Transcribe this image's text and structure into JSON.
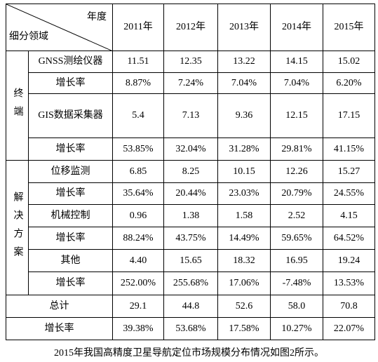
{
  "table": {
    "corner": {
      "top": "年度",
      "bottom": "细分领域"
    },
    "years": [
      "2011年",
      "2012年",
      "2013年",
      "2014年",
      "2015年"
    ],
    "groups": [
      {
        "label": "终端",
        "rows": [
          {
            "name": "GNSS测绘仪器",
            "values": [
              "11.51",
              "12.35",
              "13.22",
              "14.15",
              "15.02"
            ]
          },
          {
            "name": "增长率",
            "values": [
              "8.87%",
              "7.24%",
              "7.04%",
              "7.04%",
              "6.20%"
            ]
          },
          {
            "name": "GIS数据采集器",
            "values": [
              "5.4",
              "7.13",
              "9.36",
              "12.15",
              "17.15"
            ]
          },
          {
            "name": "增长率",
            "values": [
              "53.85%",
              "32.04%",
              "31.28%",
              "29.81%",
              "41.15%"
            ]
          }
        ]
      },
      {
        "label": "解决方案",
        "rows": [
          {
            "name": "位移监测",
            "values": [
              "6.85",
              "8.25",
              "10.15",
              "12.26",
              "15.27"
            ]
          },
          {
            "name": "增长率",
            "values": [
              "35.64%",
              "20.44%",
              "23.03%",
              "20.79%",
              "24.55%"
            ]
          },
          {
            "name": "机械控制",
            "values": [
              "0.96",
              "1.38",
              "1.58",
              "2.52",
              "4.15"
            ]
          },
          {
            "name": "增长率",
            "values": [
              "88.24%",
              "43.75%",
              "14.49%",
              "59.65%",
              "64.52%"
            ]
          },
          {
            "name": "其他",
            "values": [
              "4.40",
              "15.65",
              "18.32",
              "16.95",
              "19.24"
            ]
          },
          {
            "name": "增长率",
            "values": [
              "252.00%",
              "255.68%",
              "17.06%",
              "-7.48%",
              "13.53%"
            ]
          }
        ]
      }
    ],
    "summary": [
      {
        "name": "总计",
        "values": [
          "29.1",
          "44.8",
          "52.6",
          "58.0",
          "70.8"
        ]
      },
      {
        "name": "增长率",
        "values": [
          "39.38%",
          "53.68%",
          "17.58%",
          "10.27%",
          "22.07%"
        ]
      }
    ]
  },
  "caption": "2015年我国高精度卫星导航定位市场规模分布情况如图2所示。"
}
